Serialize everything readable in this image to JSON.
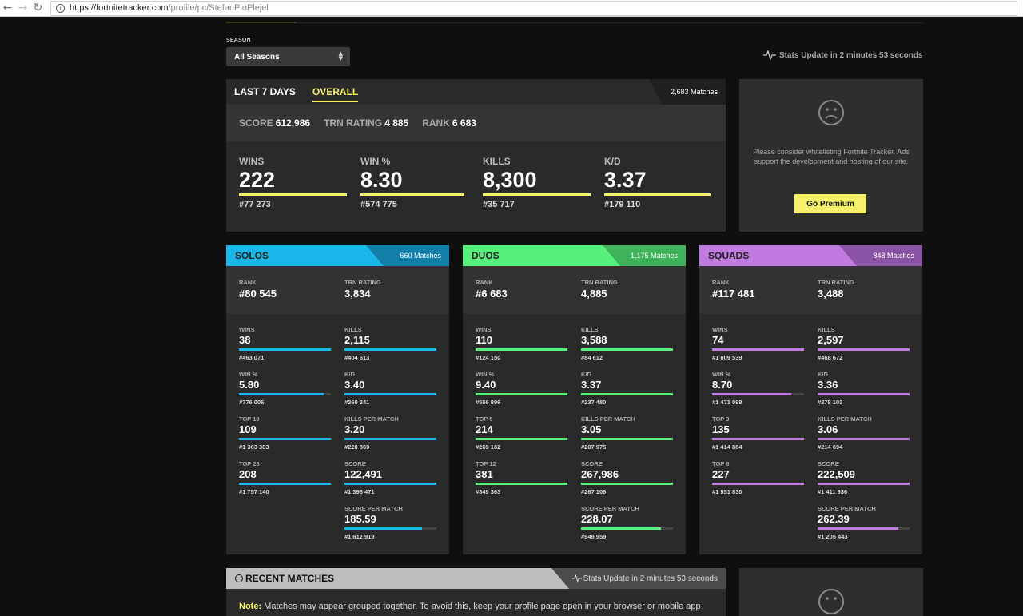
{
  "browser": {
    "url_host": "https://fortnitetracker.com",
    "url_path": "/profile/pc/StefanPloPlejel"
  },
  "season": {
    "label": "SEASON",
    "selected": "All Seasons"
  },
  "stats_update": "Stats Update in 2 minutes 53 seconds",
  "overall": {
    "tabs": [
      "LAST 7 DAYS",
      "OVERALL"
    ],
    "active_tab": "OVERALL",
    "matches": "2,683 Matches",
    "summary": [
      {
        "label": "SCORE",
        "value": "612,986"
      },
      {
        "label": "TRN RATING",
        "value": "4 885"
      },
      {
        "label": "RANK",
        "value": "6 683"
      }
    ],
    "stats": [
      {
        "label": "WINS",
        "value": "222",
        "rank": "#77 273"
      },
      {
        "label": "WIN %",
        "value": "8.30",
        "rank": "#574 775"
      },
      {
        "label": "KILLS",
        "value": "8,300",
        "rank": "#35 717"
      },
      {
        "label": "K/D",
        "value": "3.37",
        "rank": "#179 110"
      }
    ],
    "accent_color": "#f5f16b"
  },
  "ad": {
    "icon": "sad-face-icon",
    "text": "Please consider whitelisting Fortnite Tracker. Ads support the development and hosting of our site.",
    "button": "Go Premium"
  },
  "modes": [
    {
      "name": "SOLOS",
      "matches": "660 Matches",
      "color": "#1ab7ea",
      "dark_color": "#127fa8",
      "rank_label": "RANK",
      "rank": "#80 545",
      "trn_label": "TRN RATING",
      "trn": "3,834",
      "left": [
        {
          "label": "WINS",
          "value": "38",
          "rank": "#463 071",
          "fill": 1.0
        },
        {
          "label": "WIN %",
          "value": "5.80",
          "rank": "#776 006",
          "fill": 0.92
        },
        {
          "label": "TOP 10",
          "value": "109",
          "rank": "#1 363 383",
          "fill": 1.0
        },
        {
          "label": "TOP 25",
          "value": "208",
          "rank": "#1 757 140",
          "fill": 1.0
        }
      ],
      "right": [
        {
          "label": "KILLS",
          "value": "2,115",
          "rank": "#404 613",
          "fill": 1.0
        },
        {
          "label": "K/D",
          "value": "3.40",
          "rank": "#260 241",
          "fill": 1.0
        },
        {
          "label": "KILLS PER MATCH",
          "value": "3.20",
          "rank": "#220 869",
          "fill": 1.0
        },
        {
          "label": "SCORE",
          "value": "122,491",
          "rank": "#1 398 471",
          "fill": 1.0
        },
        {
          "label": "SCORE PER MATCH",
          "value": "185.59",
          "rank": "#1 612 919",
          "fill": 0.84
        }
      ]
    },
    {
      "name": "DUOS",
      "matches": "1,175 Matches",
      "color": "#57f07a",
      "dark_color": "#3fb35a",
      "rank_label": "RANK",
      "rank": "#6 683",
      "trn_label": "TRN RATING",
      "trn": "4,885",
      "left": [
        {
          "label": "WINS",
          "value": "110",
          "rank": "#124 150",
          "fill": 1.0
        },
        {
          "label": "WIN %",
          "value": "9.40",
          "rank": "#556 896",
          "fill": 1.0
        },
        {
          "label": "TOP 5",
          "value": "214",
          "rank": "#269 162",
          "fill": 1.0
        },
        {
          "label": "TOP 12",
          "value": "381",
          "rank": "#349 363",
          "fill": 1.0
        }
      ],
      "right": [
        {
          "label": "KILLS",
          "value": "3,588",
          "rank": "#84 612",
          "fill": 1.0
        },
        {
          "label": "K/D",
          "value": "3.37",
          "rank": "#237 480",
          "fill": 1.0
        },
        {
          "label": "KILLS PER MATCH",
          "value": "3.05",
          "rank": "#207 975",
          "fill": 1.0
        },
        {
          "label": "SCORE",
          "value": "267,986",
          "rank": "#267 109",
          "fill": 1.0
        },
        {
          "label": "SCORE PER MATCH",
          "value": "228.07",
          "rank": "#949 959",
          "fill": 0.87
        }
      ]
    },
    {
      "name": "SQUADS",
      "matches": "848 Matches",
      "color": "#c07ae0",
      "dark_color": "#8b53a6",
      "rank_label": "RANK",
      "rank": "#117 481",
      "trn_label": "TRN RATING",
      "trn": "3,488",
      "left": [
        {
          "label": "WINS",
          "value": "74",
          "rank": "#1 009 539",
          "fill": 1.0
        },
        {
          "label": "WIN %",
          "value": "8.70",
          "rank": "#1 471 098",
          "fill": 0.86
        },
        {
          "label": "TOP 3",
          "value": "135",
          "rank": "#1 414 884",
          "fill": 1.0
        },
        {
          "label": "TOP 6",
          "value": "227",
          "rank": "#1 551 830",
          "fill": 1.0
        }
      ],
      "right": [
        {
          "label": "KILLS",
          "value": "2,597",
          "rank": "#468 672",
          "fill": 1.0
        },
        {
          "label": "K/D",
          "value": "3.36",
          "rank": "#278 103",
          "fill": 1.0
        },
        {
          "label": "KILLS PER MATCH",
          "value": "3.06",
          "rank": "#214 694",
          "fill": 1.0
        },
        {
          "label": "SCORE",
          "value": "222,509",
          "rank": "#1 411 936",
          "fill": 1.0
        },
        {
          "label": "SCORE PER MATCH",
          "value": "262.39",
          "rank": "#1 205 443",
          "fill": 0.88
        }
      ]
    }
  ],
  "recent": {
    "title": "RECENT MATCHES",
    "update": "Stats Update in 2 minutes 53 seconds",
    "note_label": "Note:",
    "note": " Matches may appear grouped together. To avoid this, keep your profile page open in your browser or mobile app"
  }
}
